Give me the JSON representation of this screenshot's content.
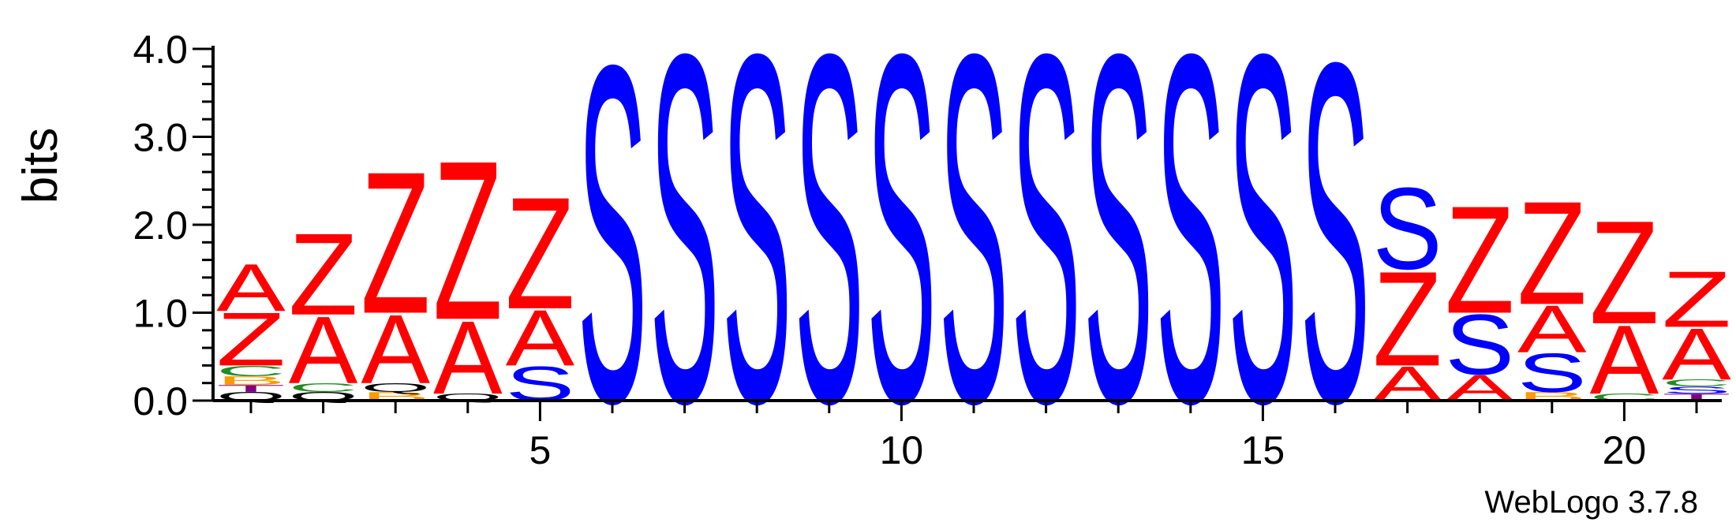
{
  "chart_data": {
    "type": "sequence-logo",
    "ylabel": "bits",
    "ylim": [
      0,
      4.0
    ],
    "y_ticks": [
      "0.0",
      "1.0",
      "2.0",
      "3.0",
      "4.0"
    ],
    "x_ticks": [
      "5",
      "10",
      "15",
      "20"
    ],
    "colors": {
      "S": "#0000ff",
      "Z": "#ff0000",
      "A": "#ff0000",
      "C": "#228b22",
      "B": "#ff9900",
      "T": "#800080"
    },
    "positions": [
      {
        "pos": 1,
        "stack": [
          {
            "letter": "Q",
            "h": 0.1
          },
          {
            "letter": "T",
            "h": 0.08
          },
          {
            "letter": "B",
            "h": 0.1
          },
          {
            "letter": "C",
            "h": 0.12
          },
          {
            "letter": "Z",
            "h": 0.62
          },
          {
            "letter": "A",
            "h": 0.55
          }
        ]
      },
      {
        "pos": 2,
        "stack": [
          {
            "letter": "Q",
            "h": 0.1
          },
          {
            "letter": "C",
            "h": 0.1
          },
          {
            "letter": "A",
            "h": 0.78
          },
          {
            "letter": "Z",
            "h": 0.95
          }
        ]
      },
      {
        "pos": 3,
        "stack": [
          {
            "letter": "B",
            "h": 0.1
          },
          {
            "letter": "Q",
            "h": 0.1
          },
          {
            "letter": "A",
            "h": 0.8
          },
          {
            "letter": "Z",
            "h": 1.65
          }
        ]
      },
      {
        "pos": 4,
        "stack": [
          {
            "letter": "Q",
            "h": 0.08
          },
          {
            "letter": "A",
            "h": 0.85
          },
          {
            "letter": "Z",
            "h": 1.85
          }
        ]
      },
      {
        "pos": 5,
        "stack": [
          {
            "letter": "S",
            "h": 0.4
          },
          {
            "letter": "A",
            "h": 0.65
          },
          {
            "letter": "Z",
            "h": 1.3
          }
        ]
      },
      {
        "pos": 6,
        "stack": [
          {
            "letter": "S",
            "h": 3.92
          }
        ]
      },
      {
        "pos": 7,
        "stack": [
          {
            "letter": "S",
            "h": 4.05
          }
        ]
      },
      {
        "pos": 8,
        "stack": [
          {
            "letter": "S",
            "h": 4.05
          }
        ]
      },
      {
        "pos": 9,
        "stack": [
          {
            "letter": "S",
            "h": 4.05
          }
        ]
      },
      {
        "pos": 10,
        "stack": [
          {
            "letter": "S",
            "h": 4.05
          }
        ]
      },
      {
        "pos": 11,
        "stack": [
          {
            "letter": "S",
            "h": 4.05
          }
        ]
      },
      {
        "pos": 12,
        "stack": [
          {
            "letter": "S",
            "h": 4.05
          }
        ]
      },
      {
        "pos": 13,
        "stack": [
          {
            "letter": "S",
            "h": 4.05
          }
        ]
      },
      {
        "pos": 14,
        "stack": [
          {
            "letter": "S",
            "h": 4.05
          }
        ]
      },
      {
        "pos": 15,
        "stack": [
          {
            "letter": "S",
            "h": 4.05
          }
        ]
      },
      {
        "pos": 16,
        "stack": [
          {
            "letter": "S",
            "h": 3.95
          }
        ]
      },
      {
        "pos": 17,
        "stack": [
          {
            "letter": "A",
            "h": 0.4
          },
          {
            "letter": "Z",
            "h": 1.1
          },
          {
            "letter": "S",
            "h": 0.95
          }
        ]
      },
      {
        "pos": 18,
        "stack": [
          {
            "letter": "A",
            "h": 0.3
          },
          {
            "letter": "S",
            "h": 0.7
          },
          {
            "letter": "Z",
            "h": 1.25
          }
        ]
      },
      {
        "pos": 19,
        "stack": [
          {
            "letter": "B",
            "h": 0.1
          },
          {
            "letter": "S",
            "h": 0.45
          },
          {
            "letter": "A",
            "h": 0.55
          },
          {
            "letter": "Z",
            "h": 1.2
          }
        ]
      },
      {
        "pos": 20,
        "stack": [
          {
            "letter": "C",
            "h": 0.08
          },
          {
            "letter": "A",
            "h": 0.8
          },
          {
            "letter": "Z",
            "h": 1.2
          }
        ]
      },
      {
        "pos": 21,
        "stack": [
          {
            "letter": "T",
            "h": 0.08
          },
          {
            "letter": "S",
            "h": 0.08
          },
          {
            "letter": "C",
            "h": 0.08
          },
          {
            "letter": "A",
            "h": 0.6
          },
          {
            "letter": "Z",
            "h": 0.65
          }
        ]
      }
    ]
  },
  "footer": {
    "credit": "WebLogo 3.7.8"
  }
}
